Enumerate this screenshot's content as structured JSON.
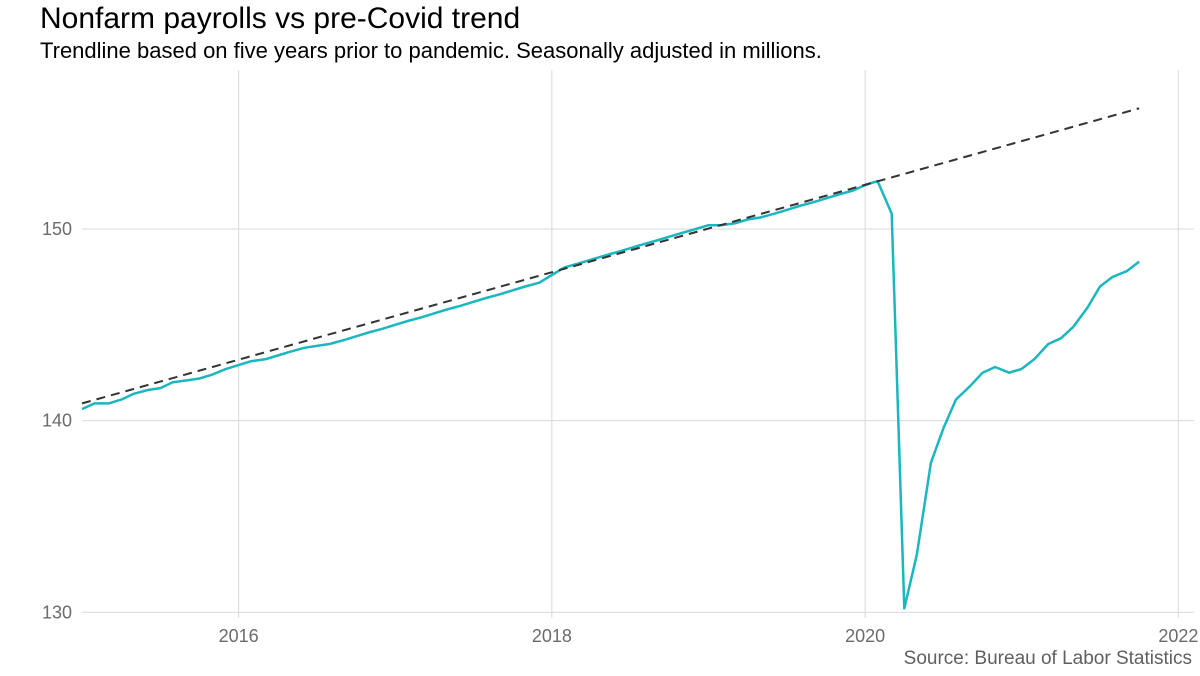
{
  "chart_data": {
    "type": "line",
    "title": "Nonfarm payrolls vs pre-Covid trend",
    "subtitle": "Trendline based on five years prior to pandemic. Seasonally adjusted in millions.",
    "caption": "Source: Bureau of Labor Statistics",
    "xlabel": "",
    "ylabel": "",
    "x_axis": {
      "min": 2015.0,
      "max": 2022.1,
      "ticks": [
        2016,
        2018,
        2020,
        2022
      ]
    },
    "y_axis": {
      "min": 129.7,
      "max": 158.3,
      "ticks": [
        130,
        140,
        150
      ]
    },
    "grid": true,
    "legend": "none",
    "colors": {
      "actual": "#1ab7c1",
      "trend": "#333333"
    },
    "series": [
      {
        "style": "solid",
        "points": [
          [
            2015.0,
            140.6
          ],
          [
            2015.08,
            140.9
          ],
          [
            2015.17,
            140.9
          ],
          [
            2015.25,
            141.1
          ],
          [
            2015.33,
            141.4
          ],
          [
            2015.42,
            141.6
          ],
          [
            2015.5,
            141.7
          ],
          [
            2015.58,
            142.0
          ],
          [
            2015.67,
            142.1
          ],
          [
            2015.75,
            142.2
          ],
          [
            2015.83,
            142.4
          ],
          [
            2015.92,
            142.7
          ],
          [
            2016.0,
            142.9
          ],
          [
            2016.08,
            143.1
          ],
          [
            2016.17,
            143.2
          ],
          [
            2016.25,
            143.4
          ],
          [
            2016.33,
            143.6
          ],
          [
            2016.42,
            143.8
          ],
          [
            2016.5,
            143.9
          ],
          [
            2016.58,
            144.0
          ],
          [
            2016.67,
            144.2
          ],
          [
            2016.75,
            144.4
          ],
          [
            2016.83,
            144.6
          ],
          [
            2016.92,
            144.8
          ],
          [
            2017.0,
            145.0
          ],
          [
            2017.08,
            145.2
          ],
          [
            2017.17,
            145.4
          ],
          [
            2017.25,
            145.6
          ],
          [
            2017.33,
            145.8
          ],
          [
            2017.42,
            146.0
          ],
          [
            2017.5,
            146.2
          ],
          [
            2017.58,
            146.4
          ],
          [
            2017.67,
            146.6
          ],
          [
            2017.75,
            146.8
          ],
          [
            2017.83,
            147.0
          ],
          [
            2017.92,
            147.2
          ],
          [
            2018.0,
            147.6
          ],
          [
            2018.08,
            148.0
          ],
          [
            2018.17,
            148.2
          ],
          [
            2018.25,
            148.4
          ],
          [
            2018.33,
            148.6
          ],
          [
            2018.42,
            148.8
          ],
          [
            2018.5,
            149.0
          ],
          [
            2018.58,
            149.2
          ],
          [
            2018.67,
            149.4
          ],
          [
            2018.75,
            149.6
          ],
          [
            2018.83,
            149.8
          ],
          [
            2018.92,
            150.0
          ],
          [
            2019.0,
            150.2
          ],
          [
            2019.08,
            150.2
          ],
          [
            2019.17,
            150.3
          ],
          [
            2019.25,
            150.5
          ],
          [
            2019.33,
            150.6
          ],
          [
            2019.42,
            150.8
          ],
          [
            2019.5,
            151.0
          ],
          [
            2019.58,
            151.2
          ],
          [
            2019.67,
            151.4
          ],
          [
            2019.75,
            151.6
          ],
          [
            2019.83,
            151.8
          ],
          [
            2019.92,
            152.0
          ],
          [
            2020.0,
            152.3
          ],
          [
            2020.08,
            152.5
          ],
          [
            2020.17,
            150.8
          ],
          [
            2020.25,
            130.2
          ],
          [
            2020.33,
            133.0
          ],
          [
            2020.42,
            137.8
          ],
          [
            2020.5,
            139.6
          ],
          [
            2020.58,
            141.1
          ],
          [
            2020.67,
            141.8
          ],
          [
            2020.75,
            142.5
          ],
          [
            2020.83,
            142.8
          ],
          [
            2020.92,
            142.5
          ],
          [
            2021.0,
            142.7
          ],
          [
            2021.08,
            143.2
          ],
          [
            2021.17,
            144.0
          ],
          [
            2021.25,
            144.3
          ],
          [
            2021.33,
            144.9
          ],
          [
            2021.42,
            145.9
          ],
          [
            2021.5,
            147.0
          ],
          [
            2021.58,
            147.5
          ],
          [
            2021.67,
            147.8
          ],
          [
            2021.75,
            148.3
          ]
        ]
      },
      {
        "style": "dashed",
        "points": [
          [
            2015.0,
            140.9
          ],
          [
            2021.75,
            156.3
          ]
        ]
      }
    ]
  }
}
